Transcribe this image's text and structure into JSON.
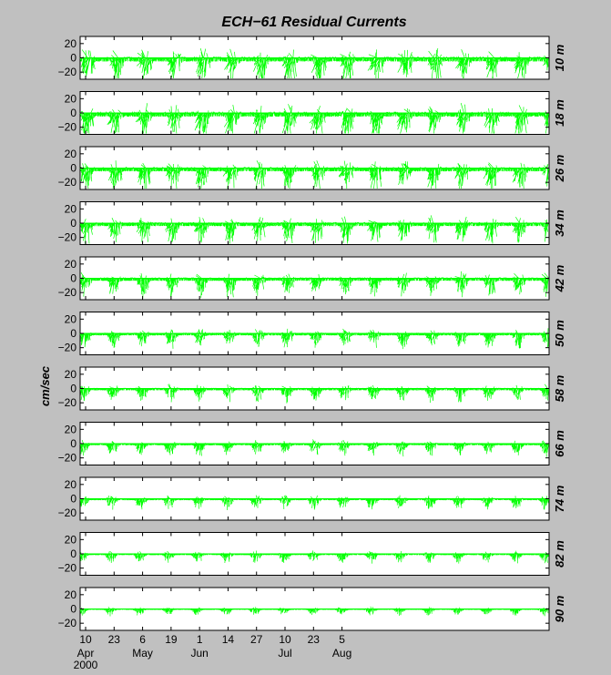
{
  "chart_data": {
    "type": "line",
    "title": "ECH−61   Residual Currents",
    "ylabel": "cm/sec",
    "xlabel": "",
    "ylim": [
      -30,
      30
    ],
    "yticks": [
      "20",
      "0",
      "−20"
    ],
    "ytick_values": [
      20,
      0,
      -20
    ],
    "xlim_days": [
      7.5,
      221.5
    ],
    "x_ticks": [
      {
        "day": 10,
        "day_label": "10",
        "month_label": "Apr"
      },
      {
        "day": 23,
        "day_label": "23",
        "month_label": ""
      },
      {
        "day": 36,
        "day_label": "6",
        "month_label": "May"
      },
      {
        "day": 49,
        "day_label": "19",
        "month_label": ""
      },
      {
        "day": 62,
        "day_label": "1",
        "month_label": "Jun"
      },
      {
        "day": 75,
        "day_label": "14",
        "month_label": ""
      },
      {
        "day": 88,
        "day_label": "27",
        "month_label": ""
      },
      {
        "day": 101,
        "day_label": "10",
        "month_label": "Jul"
      },
      {
        "day": 114,
        "day_label": "23",
        "month_label": ""
      },
      {
        "day": 127,
        "day_label": "5",
        "month_label": "Aug"
      }
    ],
    "year_label": "2000",
    "series_color": "#00ff00",
    "panels": [
      {
        "depth_label": "10 m",
        "amplitude": 1.0
      },
      {
        "depth_label": "18 m",
        "amplitude": 1.0
      },
      {
        "depth_label": "26 m",
        "amplitude": 0.9
      },
      {
        "depth_label": "34 m",
        "amplitude": 0.8
      },
      {
        "depth_label": "42 m",
        "amplitude": 0.7
      },
      {
        "depth_label": "50 m",
        "amplitude": 0.55
      },
      {
        "depth_label": "58 m",
        "amplitude": 0.5
      },
      {
        "depth_label": "66 m",
        "amplitude": 0.45
      },
      {
        "depth_label": "74 m",
        "amplitude": 0.4
      },
      {
        "depth_label": "82 m",
        "amplitude": 0.35
      },
      {
        "depth_label": "90 m",
        "amplitude": 0.25
      }
    ]
  }
}
